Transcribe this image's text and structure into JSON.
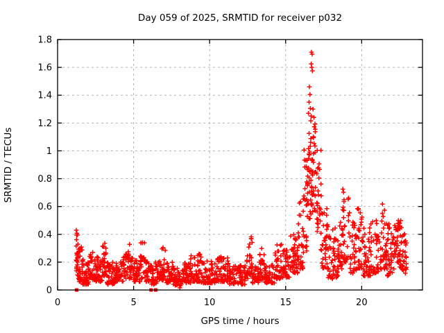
{
  "page": {
    "background": "#ffffff"
  },
  "chart_data": {
    "type": "scatter",
    "title": "Day 059 of 2025, SRMTID for receiver p032",
    "xlabel": "GPS time / hours",
    "ylabel": "SRMTID / TECUs",
    "xlim": [
      0,
      24
    ],
    "ylim": [
      0,
      1.8
    ],
    "xticks": [
      0,
      5,
      10,
      15,
      20
    ],
    "yticks": [
      0,
      0.2,
      0.4,
      0.6,
      0.8,
      1,
      1.2,
      1.4,
      1.6,
      1.8
    ],
    "grid": true,
    "grid_style": "dashed",
    "grid_color": "#b3b3b3",
    "axis_color": "#000000",
    "marker": "plus",
    "marker_color": "#ff0000",
    "marker_size": 6.6,
    "marker_stroke_width": 1.5,
    "seed": 20250228,
    "segments_format": "[x_start_hour, x_end_hour, n_points, y_min, y_max, low_bias_power]",
    "cluster_segments": [
      [
        1.22,
        1.38,
        26,
        0.1,
        0.44,
        1.2
      ],
      [
        1.38,
        1.65,
        30,
        0.06,
        0.35,
        1.7
      ],
      [
        1.65,
        2.1,
        42,
        0.04,
        0.22,
        1.6
      ],
      [
        2.1,
        2.45,
        30,
        0.07,
        0.28,
        1.7
      ],
      [
        2.45,
        2.95,
        42,
        0.06,
        0.24,
        1.7
      ],
      [
        2.95,
        3.25,
        26,
        0.1,
        0.34,
        1.4
      ],
      [
        3.25,
        3.75,
        40,
        0.04,
        0.2,
        1.6
      ],
      [
        3.75,
        4.3,
        46,
        0.06,
        0.22,
        1.7
      ],
      [
        4.3,
        4.6,
        25,
        0.08,
        0.26,
        1.5
      ],
      [
        4.6,
        4.95,
        26,
        0.08,
        0.33,
        1.6
      ],
      [
        4.95,
        5.45,
        40,
        0.06,
        0.22,
        1.7
      ],
      [
        5.45,
        5.75,
        24,
        0.08,
        0.35,
        1.5
      ],
      [
        5.75,
        6.1,
        28,
        0.06,
        0.22,
        1.7
      ],
      [
        6.1,
        6.6,
        36,
        0.04,
        0.2,
        1.6
      ],
      [
        6.6,
        7.15,
        42,
        0.07,
        0.31,
        1.7
      ],
      [
        7.15,
        7.6,
        34,
        0.05,
        0.2,
        1.7
      ],
      [
        7.6,
        8.1,
        36,
        0.03,
        0.16,
        1.5
      ],
      [
        8.02,
        8.22,
        7,
        0.01,
        0.1,
        1.1
      ],
      [
        8.2,
        8.75,
        42,
        0.05,
        0.2,
        1.8
      ],
      [
        8.75,
        9.45,
        52,
        0.06,
        0.26,
        1.9
      ],
      [
        9.45,
        10.4,
        66,
        0.05,
        0.21,
        1.8
      ],
      [
        10.4,
        11.3,
        66,
        0.06,
        0.24,
        1.8
      ],
      [
        11.3,
        12.35,
        72,
        0.04,
        0.18,
        1.6
      ],
      [
        12.35,
        12.55,
        14,
        0.08,
        0.25,
        1.4
      ],
      [
        12.55,
        12.8,
        20,
        0.1,
        0.39,
        1.2
      ],
      [
        12.8,
        13.25,
        32,
        0.05,
        0.18,
        1.6
      ],
      [
        13.25,
        13.6,
        26,
        0.07,
        0.3,
        1.6
      ],
      [
        13.6,
        14.3,
        50,
        0.05,
        0.18,
        1.6
      ],
      [
        14.3,
        14.75,
        34,
        0.08,
        0.33,
        1.7
      ],
      [
        14.75,
        15.25,
        40,
        0.09,
        0.3,
        1.6
      ],
      [
        15.25,
        15.8,
        46,
        0.12,
        0.4,
        1.5
      ],
      [
        15.8,
        16.15,
        30,
        0.15,
        0.68,
        1.4
      ],
      [
        16.15,
        16.45,
        30,
        0.25,
        1.02,
        1.2
      ],
      [
        16.42,
        16.68,
        32,
        0.5,
        1.22,
        0.9
      ],
      [
        16.66,
        16.95,
        32,
        0.55,
        1.26,
        0.9
      ],
      [
        16.95,
        17.35,
        32,
        0.28,
        1.02,
        1.4
      ],
      [
        17.35,
        17.8,
        36,
        0.15,
        0.6,
        1.6
      ],
      [
        17.8,
        18.45,
        46,
        0.08,
        0.45,
        1.7
      ],
      [
        18.45,
        18.75,
        24,
        0.15,
        0.5,
        1.5
      ],
      [
        18.75,
        19.2,
        32,
        0.2,
        0.78,
        1.4
      ],
      [
        19.2,
        19.7,
        36,
        0.12,
        0.5,
        1.6
      ],
      [
        19.7,
        20.1,
        30,
        0.15,
        0.62,
        1.7
      ],
      [
        20.1,
        20.6,
        38,
        0.1,
        0.45,
        1.7
      ],
      [
        20.6,
        21.1,
        36,
        0.12,
        0.5,
        1.6
      ],
      [
        21.1,
        21.6,
        36,
        0.15,
        0.62,
        1.6
      ],
      [
        21.6,
        22.1,
        40,
        0.1,
        0.48,
        1.6
      ],
      [
        22.1,
        22.6,
        46,
        0.15,
        0.5,
        1.3
      ],
      [
        22.6,
        22.95,
        30,
        0.12,
        0.45,
        1.3
      ]
    ],
    "extreme_points": [
      [
        16.7,
        1.71
      ],
      [
        16.74,
        1.695
      ],
      [
        16.68,
        1.625
      ],
      [
        16.72,
        1.6
      ],
      [
        16.76,
        1.575
      ],
      [
        16.56,
        1.46
      ],
      [
        16.6,
        1.405
      ],
      [
        16.54,
        1.35
      ],
      [
        16.62,
        1.305
      ],
      [
        16.5,
        1.27
      ],
      [
        16.8,
        1.3
      ],
      [
        16.86,
        1.24
      ]
    ],
    "zero_value_squares_x": [
      1.25,
      6.15,
      6.45
    ]
  }
}
